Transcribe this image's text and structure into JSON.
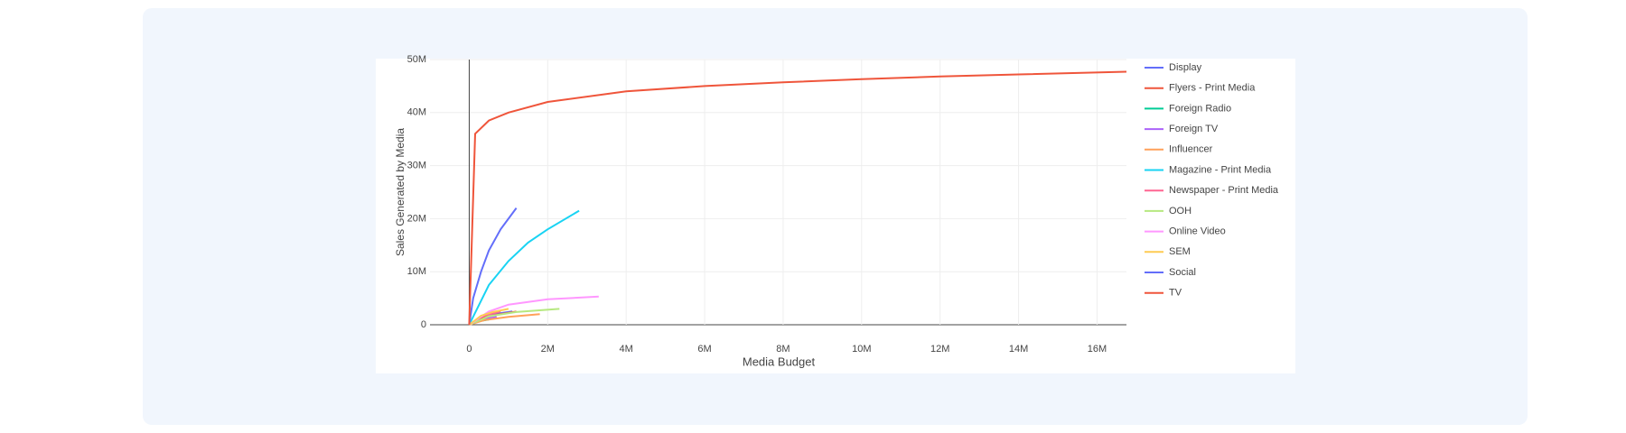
{
  "chart_data": {
    "type": "line",
    "x_label": "Media Budget",
    "y_label": "Sales Generated by Media",
    "xlim": [
      -1000000,
      16750000
    ],
    "ylim": [
      0,
      50000000
    ],
    "xticks": [
      {
        "value": 0,
        "label": "0"
      },
      {
        "value": 2000000,
        "label": "2M"
      },
      {
        "value": 4000000,
        "label": "4M"
      },
      {
        "value": 6000000,
        "label": "6M"
      },
      {
        "value": 8000000,
        "label": "8M"
      },
      {
        "value": 10000000,
        "label": "10M"
      },
      {
        "value": 12000000,
        "label": "12M"
      },
      {
        "value": 14000000,
        "label": "14M"
      },
      {
        "value": 16000000,
        "label": "16M"
      }
    ],
    "yticks": [
      {
        "value": 0,
        "label": "0"
      },
      {
        "value": 10000000,
        "label": "10M"
      },
      {
        "value": 20000000,
        "label": "20M"
      },
      {
        "value": 30000000,
        "label": "30M"
      },
      {
        "value": 40000000,
        "label": "40M"
      },
      {
        "value": 50000000,
        "label": "50M"
      }
    ],
    "grid": true,
    "series": [
      {
        "name": "Display",
        "color": "#636efa",
        "x": [
          0,
          200000,
          500000,
          800000,
          1100000
        ],
        "values": [
          0,
          900000,
          1700000,
          2200000,
          2500000
        ]
      },
      {
        "name": "Flyers - Print Media",
        "color": "#EF553B",
        "x": [
          0,
          300000,
          700000,
          1200000
        ],
        "values": [
          0,
          1200000,
          1900000,
          2500000
        ]
      },
      {
        "name": "Foreign Radio",
        "color": "#00cc96",
        "x": [
          0,
          200000,
          500000
        ],
        "values": [
          0,
          600000,
          1000000
        ]
      },
      {
        "name": "Foreign TV",
        "color": "#ab63fa",
        "x": [
          0,
          300000,
          700000
        ],
        "values": [
          0,
          900000,
          1500000
        ]
      },
      {
        "name": "Influencer",
        "color": "#FFA15A",
        "x": [
          0,
          400000,
          1000000,
          1800000
        ],
        "values": [
          0,
          900000,
          1500000,
          2000000
        ]
      },
      {
        "name": "Magazine - Print Media",
        "color": "#19d3f3",
        "x": [
          0,
          200000,
          500000,
          1000000,
          1500000,
          2000000,
          2800000
        ],
        "values": [
          0,
          3000000,
          7500000,
          12000000,
          15500000,
          18000000,
          21500000
        ]
      },
      {
        "name": "Newspaper - Print Media",
        "color": "#FF6692",
        "x": [
          0,
          300000,
          800000
        ],
        "values": [
          0,
          1500000,
          2500000
        ]
      },
      {
        "name": "OOH",
        "color": "#B6E880",
        "x": [
          0,
          500000,
          1200000,
          2300000
        ],
        "values": [
          0,
          1600000,
          2400000,
          3000000
        ]
      },
      {
        "name": "Online Video",
        "color": "#FF97FF",
        "x": [
          0,
          500000,
          1000000,
          2000000,
          3300000
        ],
        "values": [
          0,
          2500000,
          3800000,
          4800000,
          5300000
        ]
      },
      {
        "name": "SEM",
        "color": "#FECB52",
        "x": [
          0,
          300000,
          600000,
          1000000
        ],
        "values": [
          0,
          1700000,
          2400000,
          3000000
        ]
      },
      {
        "name": "Social",
        "color": "#636efa",
        "x": [
          0,
          100000,
          300000,
          500000,
          800000,
          1200000
        ],
        "values": [
          0,
          5000000,
          10000000,
          14000000,
          18000000,
          22000000
        ]
      },
      {
        "name": "TV",
        "color": "#EF553B",
        "x": [
          0,
          150000,
          500000,
          1000000,
          2000000,
          4000000,
          6000000,
          8000000,
          10000000,
          12000000,
          14000000,
          16750000
        ],
        "values": [
          0,
          36000000,
          38500000,
          40000000,
          42000000,
          44000000,
          45000000,
          45700000,
          46300000,
          46800000,
          47200000,
          47700000
        ]
      }
    ]
  }
}
